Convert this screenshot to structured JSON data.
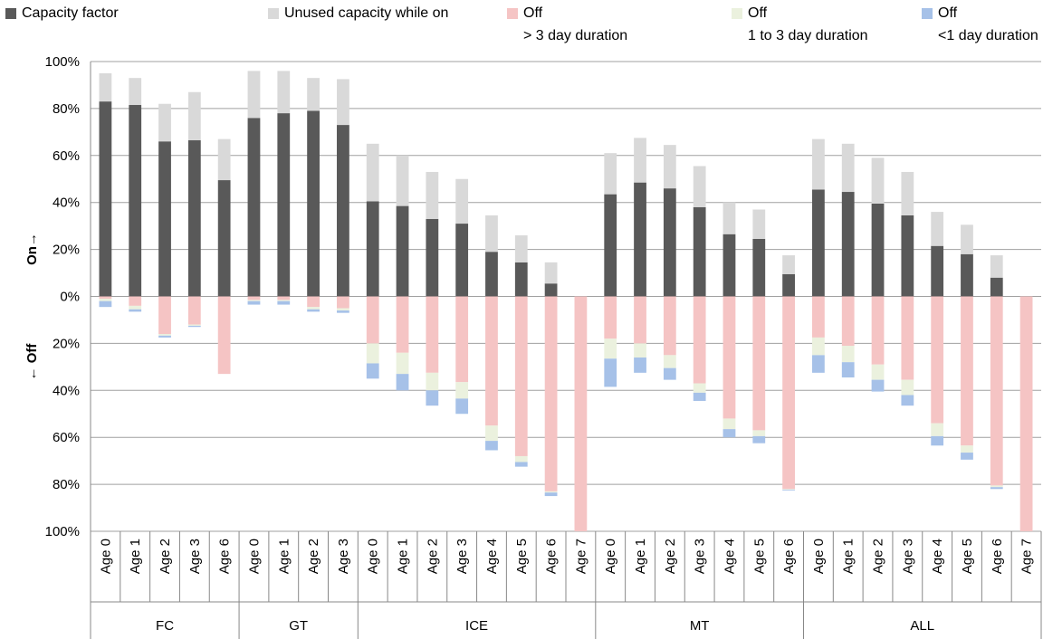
{
  "chart_data": {
    "type": "bar",
    "stacked": true,
    "y_label_on": "On→",
    "y_label_off": "← Off",
    "categories": [
      "Age 0",
      "Age 1",
      "Age 2",
      "Age 3",
      "Age 6",
      "Age 0",
      "Age 1",
      "Age 2",
      "Age 3",
      "Age 0",
      "Age 1",
      "Age 2",
      "Age 3",
      "Age 4",
      "Age 5",
      "Age 6",
      "Age 7",
      "Age 0",
      "Age 1",
      "Age 2",
      "Age 3",
      "Age 4",
      "Age 5",
      "Age 6",
      "Age 0",
      "Age 1",
      "Age 2",
      "Age 3",
      "Age 4",
      "Age 5",
      "Age 6",
      "Age 7"
    ],
    "groups": [
      "FC",
      null,
      null,
      null,
      null,
      "GT",
      null,
      null,
      null,
      "ICE",
      null,
      null,
      null,
      null,
      null,
      null,
      null,
      "MT",
      null,
      null,
      null,
      null,
      null,
      null,
      "ALL",
      null,
      null,
      null,
      null,
      null,
      null,
      null
    ],
    "series": [
      {
        "name": "Capacity factor",
        "color": "#595959",
        "values": [
          83,
          81.5,
          66,
          66.5,
          49.5,
          76,
          78,
          79,
          73,
          40.5,
          38.5,
          33,
          31,
          19,
          14.5,
          5.5,
          0,
          43.5,
          48.5,
          46,
          38,
          26.5,
          24.5,
          9.5,
          45.5,
          44.5,
          39.5,
          34.5,
          21.5,
          18,
          8,
          0
        ]
      },
      {
        "name": "Unused capacity while on",
        "color": "#d9d9d9",
        "values": [
          12,
          11.5,
          16,
          20.5,
          17.5,
          20,
          18,
          14,
          19.5,
          24.5,
          21.5,
          20,
          19,
          15.5,
          11.5,
          9,
          0,
          17.5,
          19,
          18.5,
          17.5,
          13.5,
          12.5,
          8,
          21.5,
          20.5,
          19.5,
          18.5,
          14.5,
          12.5,
          9.5,
          0
        ]
      },
      {
        "name": "Off\n> 3 day duration",
        "color": "#f5c4c4",
        "values": [
          -1,
          -4,
          -16,
          -12,
          -33,
          -1.5,
          -1.5,
          -4.5,
          -5,
          -20,
          -24,
          -32.5,
          -36.5,
          -55,
          -68,
          -83,
          -100,
          -18,
          -20,
          -25,
          -37,
          -52,
          -57,
          -82,
          -17.5,
          -21,
          -29,
          -35.5,
          -54,
          -63.5,
          -80.5,
          -100
        ]
      },
      {
        "name": "Off\n1 to 3 day duration",
        "color": "#ebf1de",
        "values": [
          -1,
          -1.5,
          -0.7,
          -0.5,
          0,
          -0.5,
          -0.5,
          -1,
          -1,
          -8.5,
          -9,
          -7.5,
          -7,
          -6.5,
          -2.5,
          -0.5,
          0,
          -8.5,
          -6,
          -5.5,
          -4,
          -4.5,
          -2.5,
          -0.3,
          -7.5,
          -7,
          -6.5,
          -6.5,
          -5.5,
          -3,
          -0.7,
          0
        ]
      },
      {
        "name": "Off\n<1 day duration",
        "color": "#a6c1e8",
        "values": [
          -2.5,
          -1,
          -0.8,
          -0.5,
          0,
          -1.5,
          -1.5,
          -1,
          -1,
          -6.5,
          -7,
          -6.5,
          -6.5,
          -4,
          -2,
          -1.5,
          0,
          -12,
          -6.5,
          -5,
          -3.5,
          -3.5,
          -3,
          -0.3,
          -7.5,
          -6.5,
          -5,
          -4.5,
          -4,
          -3,
          -0.8,
          0
        ]
      }
    ],
    "ylim": [
      -100,
      100
    ],
    "yticks": [
      {
        "value": -100,
        "label": "100%"
      },
      {
        "value": -80,
        "label": "80%"
      },
      {
        "value": -60,
        "label": "60%"
      },
      {
        "value": -40,
        "label": "40%"
      },
      {
        "value": -20,
        "label": "20%"
      },
      {
        "value": 0,
        "label": "0%"
      },
      {
        "value": 20,
        "label": "20%"
      },
      {
        "value": 40,
        "label": "40%"
      },
      {
        "value": 60,
        "label": "60%"
      },
      {
        "value": 80,
        "label": "80%"
      },
      {
        "value": 100,
        "label": "100%"
      }
    ],
    "grid": true
  }
}
